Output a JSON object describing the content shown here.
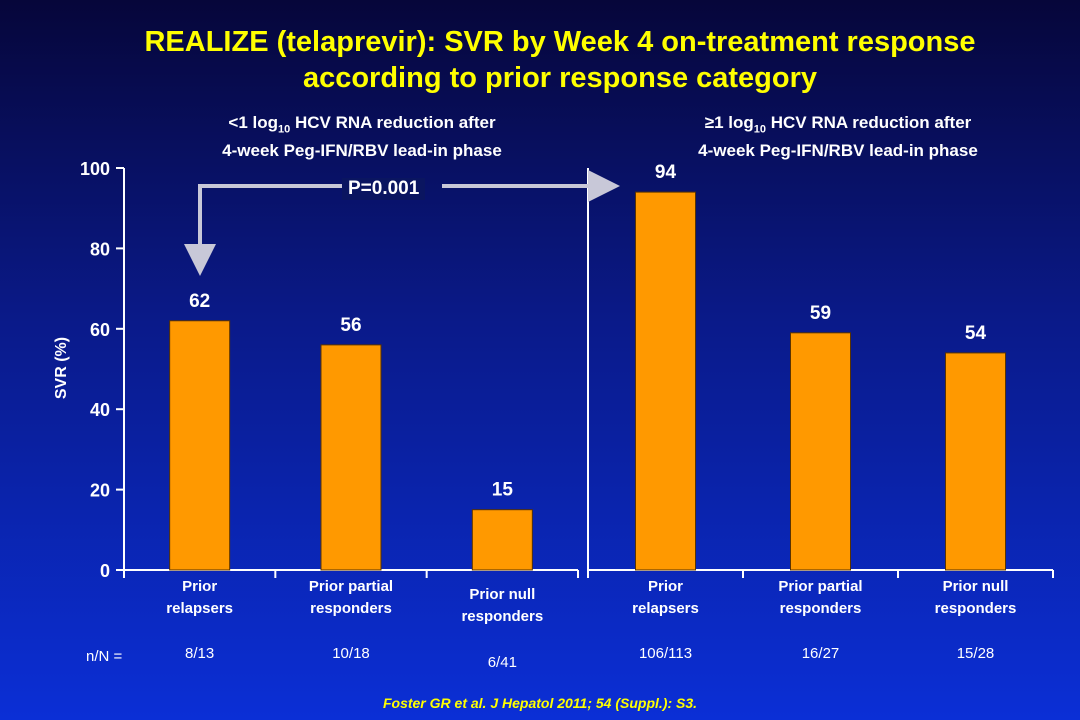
{
  "header": {
    "title_line1": "REALIZE (telaprevir): SVR by Week 4 on-treatment response",
    "title_line2": "according to prior response category"
  },
  "panels": [
    {
      "title_line1_pre": "<1 log",
      "title_sub": "10",
      "title_line1_post": " HCV RNA reduction after",
      "title_line2": "4-week Peg-IFN/RBV lead-in phase"
    },
    {
      "title_line1_pre": "≥1 log",
      "title_sub": "10",
      "title_line1_post": " HCV RNA reduction after",
      "title_line2": "4-week Peg-IFN/RBV lead-in phase"
    }
  ],
  "annotation": {
    "p_value": "P=0.001"
  },
  "n_prefix": "n/N =",
  "colors": {
    "bar": "#ff9900",
    "title": "#ffff00",
    "text": "#ffffff"
  },
  "footer": {
    "source": "Foster GR et al. J Hepatol 2011; 54 (Suppl.): S3."
  },
  "chart_data": [
    {
      "type": "bar",
      "ylabel": "SVR (%)",
      "ylim": [
        0,
        100
      ],
      "yticks": [
        0,
        20,
        40,
        60,
        80,
        100
      ],
      "categories": [
        [
          "Prior",
          "relapsers"
        ],
        [
          "Prior partial",
          "responders"
        ],
        [
          "Prior null",
          "responders"
        ]
      ],
      "values": [
        62,
        56,
        15
      ],
      "n_labels": [
        "8/13",
        "10/18",
        "6/41"
      ]
    },
    {
      "type": "bar",
      "ylim": [
        0,
        100
      ],
      "categories": [
        [
          "Prior",
          "relapsers"
        ],
        [
          "Prior partial",
          "responders"
        ],
        [
          "Prior null",
          "responders"
        ]
      ],
      "values": [
        94,
        59,
        54
      ],
      "n_labels": [
        "106/113",
        "16/27",
        "15/28"
      ]
    }
  ]
}
